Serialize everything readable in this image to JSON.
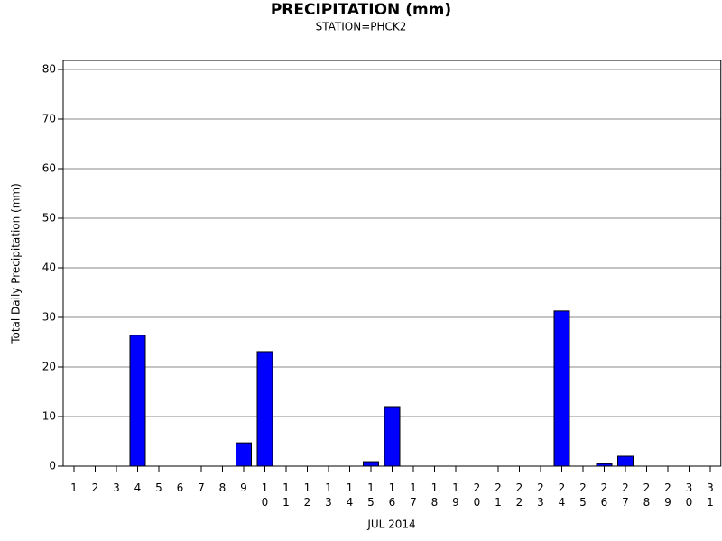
{
  "chart_data": {
    "type": "bar",
    "title": "PRECIPITATION (mm)",
    "subtitle": "STATION=PHCK2",
    "ylabel": "Total Daily Precipitation (mm)",
    "xlabel": "JUL 2014",
    "categories": [
      "1",
      "2",
      "3",
      "4",
      "5",
      "6",
      "7",
      "8",
      "9",
      "10",
      "11",
      "12",
      "13",
      "14",
      "15",
      "16",
      "17",
      "18",
      "19",
      "20",
      "21",
      "22",
      "23",
      "24",
      "25",
      "26",
      "27",
      "28",
      "29",
      "30",
      "31"
    ],
    "values": [
      0,
      0,
      0,
      26.4,
      0,
      0,
      0,
      0,
      4.7,
      23.1,
      0,
      0,
      0,
      0,
      0.9,
      12,
      0,
      0,
      0,
      0,
      0,
      0,
      0,
      31.3,
      0,
      0.5,
      2,
      0,
      0,
      0,
      0
    ],
    "color": "#0000ff",
    "ylim": [
      0,
      80
    ],
    "yticks": [
      0,
      10,
      20,
      30,
      40,
      50,
      60,
      70,
      80
    ],
    "grid": true
  }
}
